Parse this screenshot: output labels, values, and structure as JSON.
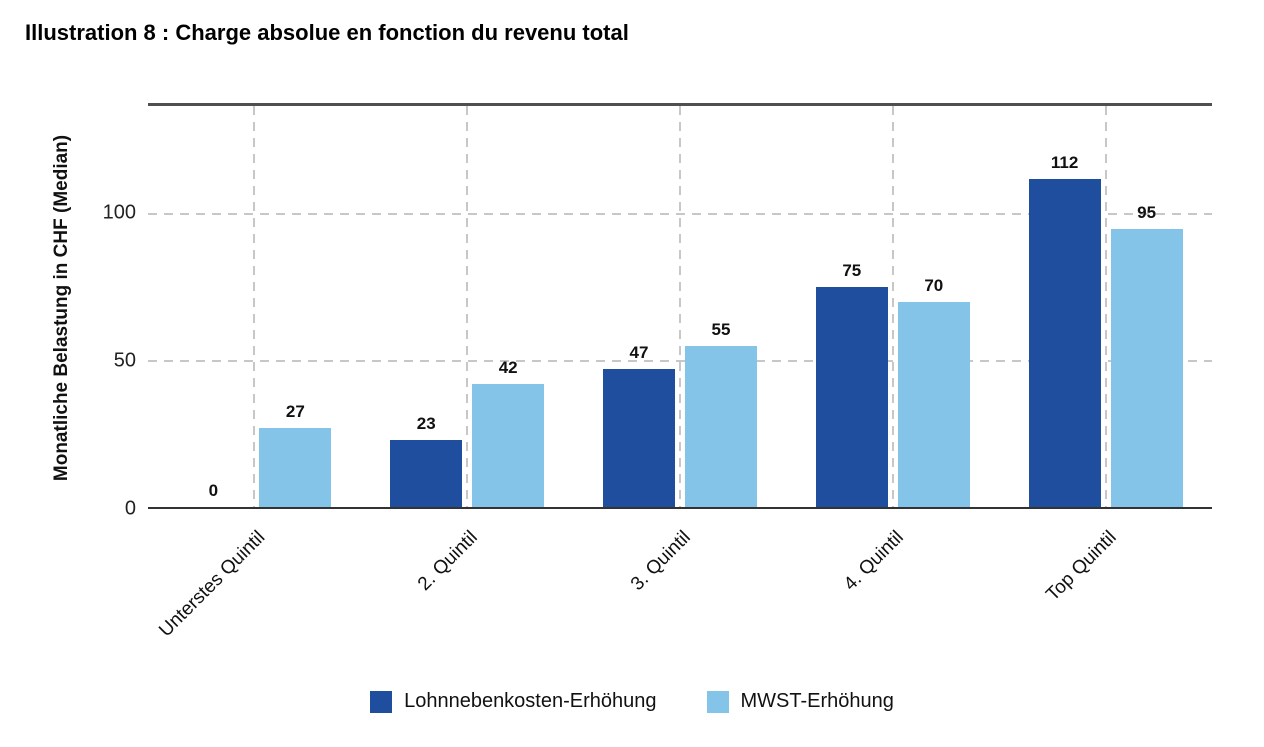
{
  "chart_data": {
    "type": "bar",
    "title": "Illustration 8 : Charge absolue en fonction du revenu total",
    "categories": [
      "Unterstes Quintil",
      "2. Quintil",
      "3. Quintil",
      "4. Quintil",
      "Top Quintil"
    ],
    "series": [
      {
        "name": "Lohnnebenkosten-Erhöhung",
        "color": "#1f4e9f",
        "values": [
          0,
          23,
          47,
          75,
          112
        ]
      },
      {
        "name": "MWST-Erhöhung",
        "color": "#84c4e8",
        "values": [
          27,
          42,
          55,
          70,
          95
        ]
      }
    ],
    "xlabel": "",
    "ylabel": "Monatliche Belastung in CHF (Median)",
    "ylim": [
      0,
      137
    ],
    "yticks": [
      0,
      50,
      100
    ],
    "grid": "dashed horizontal gridlines at yticks and dashed vertical gridlines at category centers; solid top border and solid baseline",
    "legend_position": "bottom-center",
    "value_labels": true
  }
}
